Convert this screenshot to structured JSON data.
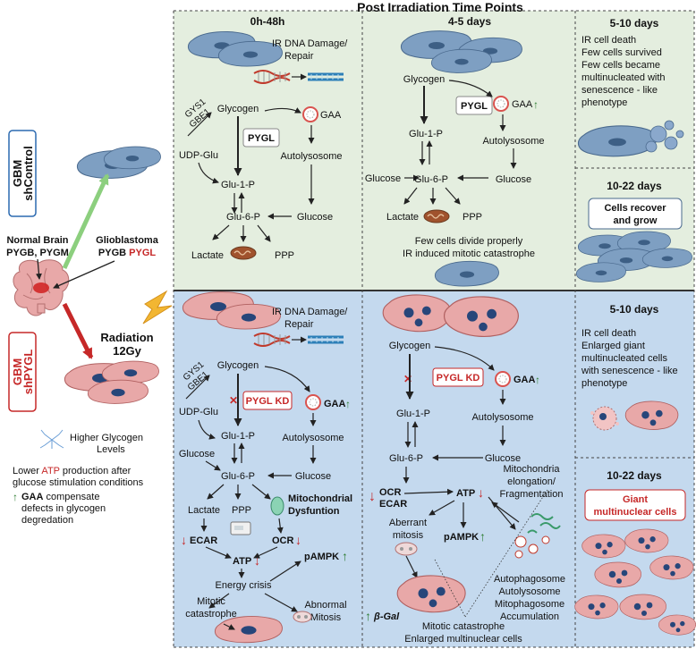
{
  "header": {
    "title": "Post Irradiation Time Points"
  },
  "sidebar": {
    "ctrl_line1": "GBM",
    "ctrl_line2": "shControl",
    "normal_line1": "Normal Brain",
    "normal_line2": "PYGB, PYGM",
    "gbm_line1": "Glioblastoma",
    "gbm_line2a": "PYGB",
    "gbm_line2b": "PYGL",
    "rad_line1": "Radiation",
    "rad_line2": "12Gy",
    "kd_line1": "GBM",
    "kd_line2": "shPYGL",
    "glycogen_line1": "Higher Glycogen",
    "glycogen_line2": "Levels",
    "atp_pre": "Lower",
    "atp_word": "ATP",
    "atp_post": "production after",
    "atp_line2": "glucose stimulation conditions",
    "gaa_word": "GAA",
    "gaa_post": "compensate",
    "gaa_line2": "defects in glycogen",
    "gaa_line3": "degredation"
  },
  "control": {
    "p1": {
      "title": "0h-48h",
      "ir1": "IR DNA Damage/",
      "ir2": "Repair",
      "gys1": "GYS1",
      "gbe1": "GBE1",
      "glycogen": "Glycogen",
      "pygl": "PYGL",
      "gaa": "GAA",
      "udp": "UDP-Glu",
      "autolysosome": "Autolysosome",
      "glu1p": "Glu-1-P",
      "glu6p": "Glu-6-P",
      "glucose": "Glucose",
      "lactate": "Lactate",
      "ppp": "PPP"
    },
    "p2": {
      "title": "4-5 days",
      "glycogen": "Glycogen",
      "pygl": "PYGL",
      "gaa": "GAA",
      "glu1p": "Glu-1-P",
      "autolysosome": "Autolysosome",
      "glucose_l": "Glucose",
      "glu6p": "Glu-6-P",
      "glucose_r": "Glucose",
      "lactate": "Lactate",
      "ppp": "PPP",
      "note1": "Few cells divide properly",
      "note2": "IR induced mitotic catastrophe"
    },
    "p3": {
      "title": "5-10 days",
      "l1": "IR cell death",
      "l2": "Few cells survived",
      "l3": "Few cells became",
      "l4": "multinucleated with",
      "l5": "senescence - like",
      "l6": "phenotype"
    },
    "p4": {
      "title": "10-22 days",
      "box1": "Cells recover",
      "box2": "and grow"
    }
  },
  "knockdown": {
    "p1": {
      "ir1": "IR DNA Damage/",
      "ir2": "Repair",
      "gys1": "GYS1",
      "gbe1": "GBE1",
      "glycogen": "Glycogen",
      "pygl_kd": "PYGL KD",
      "gaa": "GAA",
      "udp": "UDP-Glu",
      "autolysosome": "Autolysosome",
      "glu1p": "Glu-1-P",
      "glucose_l": "Glucose",
      "glu6p": "Glu-6-P",
      "glucose_r": "Glucose",
      "lactate": "Lactate",
      "ppp": "PPP",
      "mito1": "Mitochondrial",
      "mito2": "Dysfuntion",
      "ecar": "ECAR",
      "ocr": "OCR",
      "atp": "ATP",
      "pampk": "pAMPK",
      "crisis": "Energy crisis",
      "mc1": "Mitotic",
      "mc2": "catastrophe",
      "am1": "Abnormal",
      "am2": "Mitosis"
    },
    "p2": {
      "glycogen": "Glycogen",
      "pygl_kd": "PYGL KD",
      "gaa": "GAA",
      "glu1p": "Glu-1-P",
      "autolysosome": "Autolysosome",
      "glu6p": "Glu-6-P",
      "glucose": "Glucose",
      "ocr": "OCR",
      "ecar": "ECAR",
      "atp": "ATP",
      "mito1": "Mitochondria",
      "mito2": "elongation/",
      "mito3": "Fragmentation",
      "ab1": "Aberrant",
      "ab2": "mitosis",
      "pampk": "pAMPK",
      "auto1": "Autophagosome",
      "auto2": "Autolysosome",
      "auto3": "Mitophagosome",
      "auto4": "Accumulation",
      "bgal": "β-Gal",
      "mc": "Mitotic catastrophe",
      "emc": "Enlarged multinuclear cells"
    },
    "p3": {
      "title": "5-10 days",
      "l1": "IR cell death",
      "l2": "Enlarged giant",
      "l3": "multinucleated cells",
      "l4": "with senescence - like",
      "l5": "phenotype"
    },
    "p4": {
      "title": "10-22 days",
      "box1": "Giant",
      "box2": "multinuclear cells"
    }
  }
}
